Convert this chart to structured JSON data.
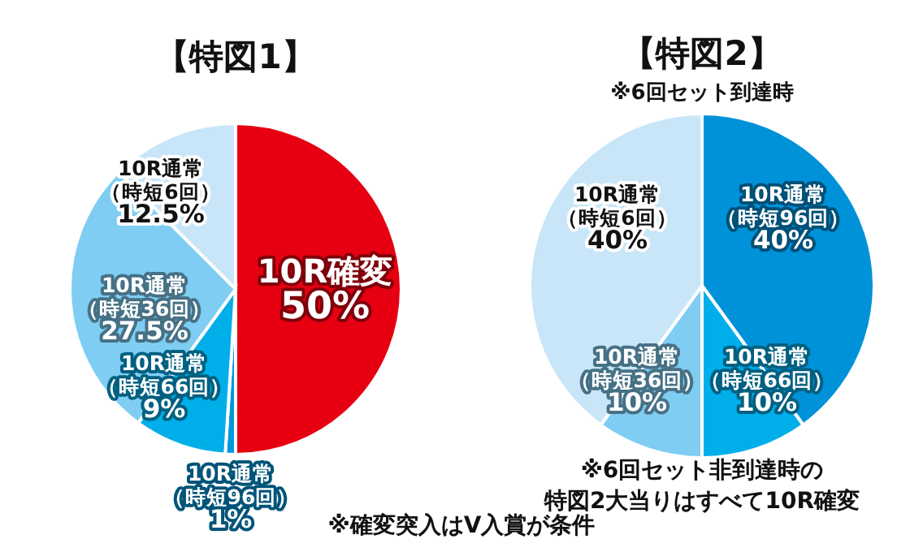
{
  "chart_data": [
    {
      "type": "pie",
      "title": "【特図1】",
      "categories": [
        "10R確変",
        "10R通常（時短96回）",
        "10R通常（時短66回）",
        "10R通常（時短36回）",
        "10R通常（時短6回）"
      ],
      "values": [
        50,
        1,
        9,
        27.5,
        12.5
      ],
      "value_labels": [
        "50%",
        "1%",
        "9%",
        "27.5%",
        "12.5%"
      ],
      "colors": [
        "#e60012",
        "#0098dc",
        "#00aeea",
        "#7fcdf2",
        "#c8e6f8"
      ],
      "annotations": [
        "※確変突入はV入賞が条件"
      ]
    },
    {
      "type": "pie",
      "title": "【特図2】",
      "subtitle": "※6回セット到達時",
      "categories": [
        "10R通常（時短96回）",
        "10R通常（時短66回）",
        "10R通常（時短36回）",
        "10R通常（時短6回）"
      ],
      "values": [
        40,
        10,
        10,
        40
      ],
      "value_labels": [
        "40%",
        "10%",
        "10%",
        "40%"
      ],
      "colors": [
        "#0092d8",
        "#00aeea",
        "#7fcdf2",
        "#c8e6f8"
      ],
      "annotations": [
        "※6回セット非到達時の",
        "特図2大当りはすべて10R確変"
      ]
    }
  ]
}
